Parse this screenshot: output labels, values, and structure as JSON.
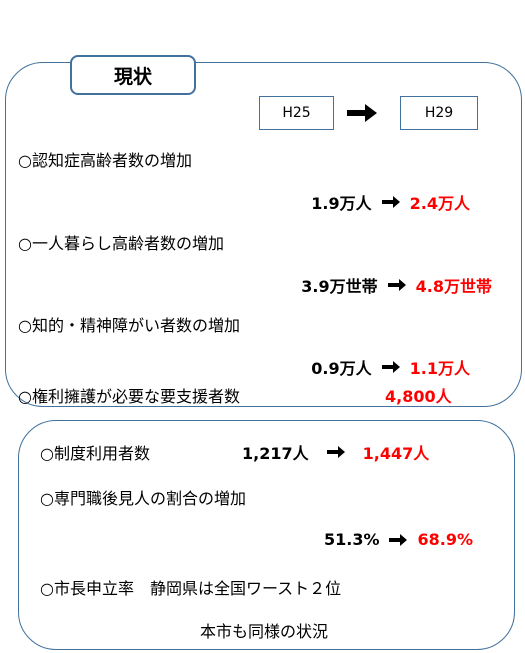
{
  "header": {
    "label": "現状",
    "from": "H25",
    "to": "H29"
  },
  "items": [
    {
      "text": "○認知症高齢者数の増加",
      "before": "1.9万人",
      "after": "2.4万人"
    },
    {
      "text": "○一人暮らし高齢者数の増加",
      "before": "3.9万世帯",
      "after": "4.8万世帯"
    },
    {
      "text": "○知的・精神障がい者数の増加",
      "before": "0.9万人",
      "after": "1.1万人"
    }
  ],
  "total": {
    "text": "○権利擁護が必要な要支援者数",
    "value": "4,800人"
  },
  "users": {
    "text": "○制度利用者数",
    "before": "1,217人",
    "after": "1,447人"
  },
  "professional": {
    "text": "○専門職後見人の割合の増加",
    "before": "51.3%",
    "after": "68.9%"
  },
  "mayor": {
    "text": "○市長申立率　静岡県は全国ワースト２位",
    "note": "本市も同様の状況"
  }
}
